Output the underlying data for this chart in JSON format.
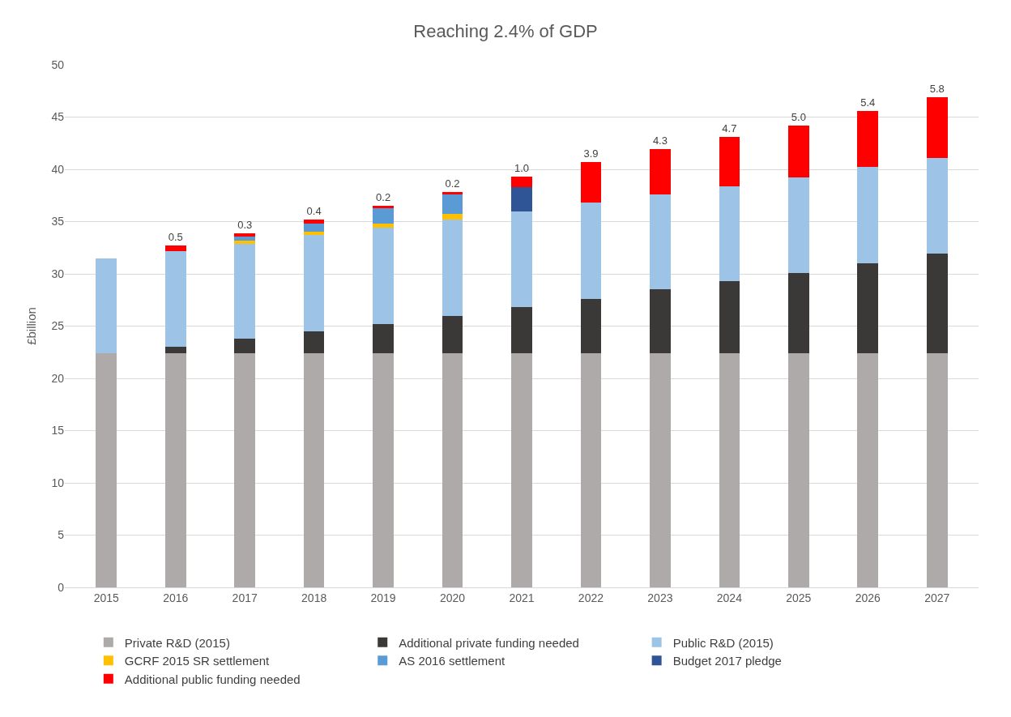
{
  "chart_data": {
    "type": "bar",
    "title": "Reaching 2.4% of GDP",
    "ylabel": "£billion",
    "stacked": true,
    "categories": [
      "2015",
      "2016",
      "2017",
      "2018",
      "2019",
      "2020",
      "2021",
      "2022",
      "2023",
      "2024",
      "2025",
      "2026",
      "2027"
    ],
    "series": [
      {
        "name": "Private R&D (2015)",
        "color": "#aeaaaa",
        "values": [
          22.4,
          22.4,
          22.4,
          22.4,
          22.4,
          22.4,
          22.4,
          22.4,
          22.4,
          22.4,
          22.4,
          22.4,
          22.4
        ]
      },
      {
        "name": "Additional private funding needed",
        "color": "#3b3838",
        "values": [
          null,
          0.6,
          1.4,
          2.1,
          2.8,
          3.6,
          4.4,
          5.2,
          6.1,
          6.9,
          7.7,
          8.6,
          9.5
        ]
      },
      {
        "name": "Public R&D (2015)",
        "color": "#9dc3e6",
        "values": [
          9.1,
          9.2,
          9.1,
          9.2,
          9.2,
          9.2,
          9.2,
          9.2,
          9.1,
          9.1,
          9.1,
          9.2,
          9.2
        ]
      },
      {
        "name": "GCRF 2015 SR settlement",
        "color": "#ffc000",
        "values": [
          null,
          null,
          0.3,
          0.3,
          0.4,
          0.5,
          null,
          null,
          null,
          null,
          null,
          null,
          null
        ]
      },
      {
        "name": "AS 2016 settlement",
        "color": "#5b9bd5",
        "values": [
          null,
          null,
          0.4,
          0.8,
          1.5,
          1.9,
          null,
          null,
          null,
          null,
          null,
          null,
          null
        ]
      },
      {
        "name": "Budget 2017 pledge",
        "color": "#2f5597",
        "values": [
          null,
          null,
          null,
          null,
          null,
          null,
          2.3,
          null,
          null,
          null,
          null,
          null,
          null
        ]
      },
      {
        "name": "Additional public funding needed",
        "color": "#ff0000",
        "values": [
          null,
          0.5,
          0.3,
          0.4,
          0.2,
          0.2,
          1.0,
          3.9,
          4.3,
          4.7,
          5.0,
          5.4,
          5.8
        ],
        "value_labels": [
          null,
          "0.5",
          "0.3",
          "0.4",
          "0.2",
          "0.2",
          "1.0",
          "3.9",
          "4.3",
          "4.7",
          "5.0",
          "5.4",
          "5.8"
        ]
      }
    ],
    "ylim": [
      0,
      50
    ],
    "yticks": [
      0,
      5,
      10,
      15,
      20,
      25,
      30,
      35,
      40,
      45,
      50
    ],
    "grid": "y",
    "legend": "bottom"
  }
}
